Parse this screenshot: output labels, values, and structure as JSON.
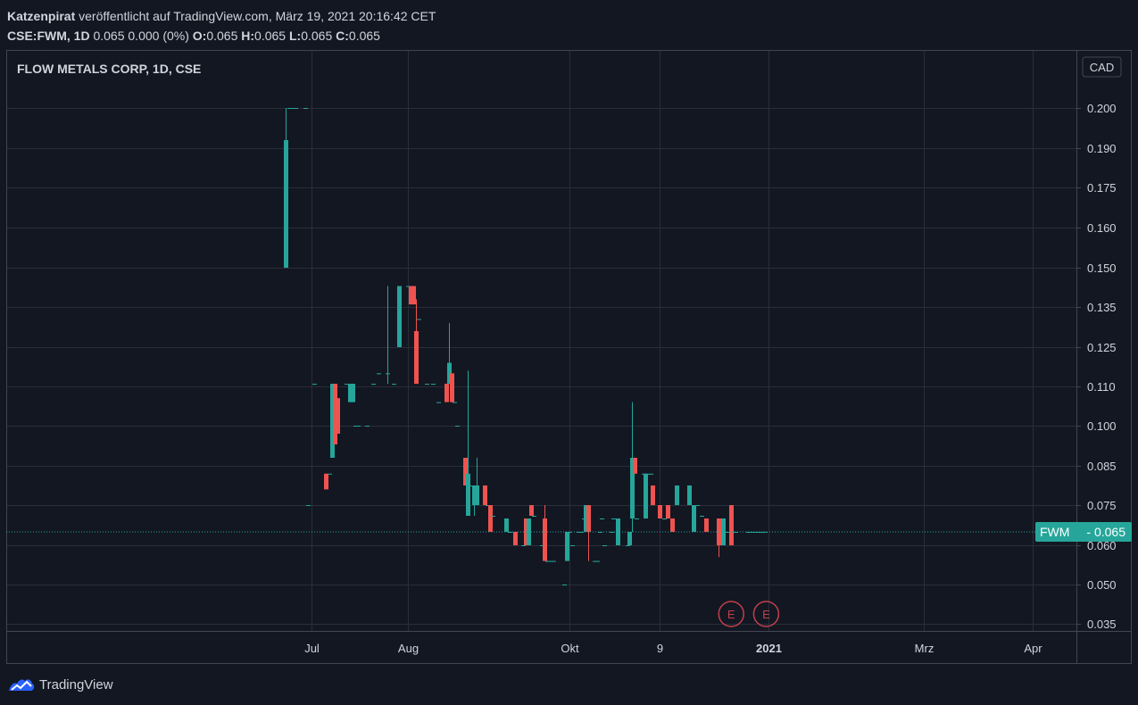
{
  "header": {
    "author": "Katzenpirat",
    "published_text": "veröffentlicht auf TradingView.com, März 19, 2021 20:16:42 CET",
    "symbol": "CSE:FWM, 1D",
    "last": "0.065",
    "change": "0.000 (0%)",
    "o_label": "O:",
    "o_value": "0.065",
    "h_label": "H:",
    "h_value": "0.065",
    "l_label": "L:",
    "l_value": "0.065",
    "c_label": "C:",
    "c_value": "0.065"
  },
  "footer": {
    "brand": "TradingView"
  },
  "colors": {
    "bg": "#131722",
    "grid": "#2a2e39",
    "up": "#26a69a",
    "down": "#ef5350",
    "text": "#d1d4dc",
    "event": "#c2404d"
  },
  "chart_data": {
    "type": "candlestick",
    "title": "FLOW METALS CORP, 1D, CSE",
    "currency": "CAD",
    "y_ticks": [
      "0.200",
      "0.190",
      "0.175",
      "0.160",
      "0.150",
      "0.135",
      "0.125",
      "0.110",
      "0.100",
      "0.085",
      "0.075",
      "0.060",
      "0.050",
      "0.035"
    ],
    "x_ticks": [
      {
        "label": "Jul",
        "date": "2020-07-01",
        "bold": false
      },
      {
        "label": "Aug",
        "date": "2020-08-03",
        "bold": false
      },
      {
        "label": "Okt",
        "date": "2020-10-01",
        "bold": false
      },
      {
        "label": "9",
        "date": "2020-11-09",
        "bold": false
      },
      {
        "label": "2021",
        "date": "2021-01-04",
        "bold": true
      },
      {
        "label": "Mrz",
        "date": "2021-03-01",
        "bold": false
      },
      {
        "label": "Apr",
        "date": "2021-04-01",
        "bold": false
      }
    ],
    "last_price": {
      "label": "FWM",
      "value": "0.065"
    },
    "events": [
      {
        "label": "E",
        "date": "2020-11-26"
      },
      {
        "label": "E",
        "date": "2020-12-15"
      }
    ],
    "candles": [
      {
        "date": "2020-06-23",
        "o": 0.15,
        "h": 0.2,
        "l": 0.15,
        "c": 0.192
      },
      {
        "date": "2020-06-24",
        "o": 0.2,
        "h": 0.2,
        "l": 0.2,
        "c": 0.2
      },
      {
        "date": "2020-06-25",
        "o": 0.2,
        "h": 0.2,
        "l": 0.2,
        "c": 0.2
      },
      {
        "date": "2020-06-26",
        "o": 0.2,
        "h": 0.2,
        "l": 0.2,
        "c": 0.2
      },
      {
        "date": "2020-06-29",
        "o": 0.2,
        "h": 0.2,
        "l": 0.2,
        "c": 0.2
      },
      {
        "date": "2020-06-30",
        "o": 0.075,
        "h": 0.075,
        "l": 0.075,
        "c": 0.075
      },
      {
        "date": "2020-07-02",
        "o": 0.111,
        "h": 0.111,
        "l": 0.111,
        "c": 0.111
      },
      {
        "date": "2020-07-06",
        "o": 0.083,
        "h": 0.083,
        "l": 0.079,
        "c": 0.079
      },
      {
        "date": "2020-07-07",
        "o": 0.083,
        "h": 0.083,
        "l": 0.083,
        "c": 0.083
      },
      {
        "date": "2020-07-08",
        "o": 0.088,
        "h": 0.111,
        "l": 0.088,
        "c": 0.111
      },
      {
        "date": "2020-07-09",
        "o": 0.111,
        "h": 0.111,
        "l": 0.093,
        "c": 0.093
      },
      {
        "date": "2020-07-10",
        "o": 0.107,
        "h": 0.107,
        "l": 0.097,
        "c": 0.097
      },
      {
        "date": "2020-07-13",
        "o": 0.111,
        "h": 0.111,
        "l": 0.111,
        "c": 0.111
      },
      {
        "date": "2020-07-14",
        "o": 0.106,
        "h": 0.111,
        "l": 0.106,
        "c": 0.111
      },
      {
        "date": "2020-07-15",
        "o": 0.106,
        "h": 0.111,
        "l": 0.106,
        "c": 0.111
      },
      {
        "date": "2020-07-16",
        "o": 0.1,
        "h": 0.1,
        "l": 0.1,
        "c": 0.1
      },
      {
        "date": "2020-07-17",
        "o": 0.1,
        "h": 0.1,
        "l": 0.1,
        "c": 0.1
      },
      {
        "date": "2020-07-20",
        "o": 0.1,
        "h": 0.1,
        "l": 0.1,
        "c": 0.1
      },
      {
        "date": "2020-07-22",
        "o": 0.111,
        "h": 0.111,
        "l": 0.111,
        "c": 0.111
      },
      {
        "date": "2020-07-24",
        "o": 0.115,
        "h": 0.115,
        "l": 0.115,
        "c": 0.115
      },
      {
        "date": "2020-07-27",
        "o": 0.115,
        "h": 0.143,
        "l": 0.111,
        "c": 0.115
      },
      {
        "date": "2020-07-29",
        "o": 0.111,
        "h": 0.111,
        "l": 0.111,
        "c": 0.111
      },
      {
        "date": "2020-07-31",
        "o": 0.125,
        "h": 0.143,
        "l": 0.125,
        "c": 0.143
      },
      {
        "date": "2020-08-03",
        "o": 0.143,
        "h": 0.143,
        "l": 0.143,
        "c": 0.143
      },
      {
        "date": "2020-08-04",
        "o": 0.143,
        "h": 0.143,
        "l": 0.136,
        "c": 0.136
      },
      {
        "date": "2020-08-05",
        "o": 0.143,
        "h": 0.143,
        "l": 0.136,
        "c": 0.136
      },
      {
        "date": "2020-08-06",
        "o": 0.129,
        "h": 0.138,
        "l": 0.111,
        "c": 0.111
      },
      {
        "date": "2020-08-07",
        "o": 0.132,
        "h": 0.132,
        "l": 0.132,
        "c": 0.132
      },
      {
        "date": "2020-08-10",
        "o": 0.111,
        "h": 0.111,
        "l": 0.111,
        "c": 0.111
      },
      {
        "date": "2020-08-12",
        "o": 0.111,
        "h": 0.111,
        "l": 0.111,
        "c": 0.111
      },
      {
        "date": "2020-08-14",
        "o": 0.106,
        "h": 0.106,
        "l": 0.106,
        "c": 0.106
      },
      {
        "date": "2020-08-17",
        "o": 0.111,
        "h": 0.111,
        "l": 0.106,
        "c": 0.106
      },
      {
        "date": "2020-08-18",
        "o": 0.111,
        "h": 0.131,
        "l": 0.111,
        "c": 0.119
      },
      {
        "date": "2020-08-19",
        "o": 0.115,
        "h": 0.115,
        "l": 0.106,
        "c": 0.106
      },
      {
        "date": "2020-08-20",
        "o": 0.106,
        "h": 0.106,
        "l": 0.106,
        "c": 0.106
      },
      {
        "date": "2020-08-21",
        "o": 0.1,
        "h": 0.1,
        "l": 0.1,
        "c": 0.1
      },
      {
        "date": "2020-08-24",
        "o": 0.088,
        "h": 0.088,
        "l": 0.08,
        "c": 0.08
      },
      {
        "date": "2020-08-25",
        "o": 0.071,
        "h": 0.116,
        "l": 0.071,
        "c": 0.083
      },
      {
        "date": "2020-08-26",
        "o": 0.08,
        "h": 0.08,
        "l": 0.08,
        "c": 0.08
      },
      {
        "date": "2020-08-27",
        "o": 0.075,
        "h": 0.08,
        "l": 0.071,
        "c": 0.08
      },
      {
        "date": "2020-08-28",
        "o": 0.075,
        "h": 0.088,
        "l": 0.075,
        "c": 0.08
      },
      {
        "date": "2020-08-31",
        "o": 0.08,
        "h": 0.08,
        "l": 0.075,
        "c": 0.075
      },
      {
        "date": "2020-09-01",
        "o": 0.075,
        "h": 0.075,
        "l": 0.075,
        "c": 0.075
      },
      {
        "date": "2020-09-02",
        "o": 0.075,
        "h": 0.075,
        "l": 0.065,
        "c": 0.065
      },
      {
        "date": "2020-09-03",
        "o": 0.071,
        "h": 0.071,
        "l": 0.071,
        "c": 0.071
      },
      {
        "date": "2020-09-08",
        "o": 0.065,
        "h": 0.07,
        "l": 0.065,
        "c": 0.07
      },
      {
        "date": "2020-09-09",
        "o": 0.065,
        "h": 0.065,
        "l": 0.065,
        "c": 0.065
      },
      {
        "date": "2020-09-11",
        "o": 0.065,
        "h": 0.065,
        "l": 0.06,
        "c": 0.06
      },
      {
        "date": "2020-09-14",
        "o": 0.06,
        "h": 0.06,
        "l": 0.06,
        "c": 0.06
      },
      {
        "date": "2020-09-15",
        "o": 0.07,
        "h": 0.07,
        "l": 0.06,
        "c": 0.06
      },
      {
        "date": "2020-09-16",
        "o": 0.06,
        "h": 0.07,
        "l": 0.06,
        "c": 0.07
      },
      {
        "date": "2020-09-17",
        "o": 0.075,
        "h": 0.075,
        "l": 0.071,
        "c": 0.071
      },
      {
        "date": "2020-09-18",
        "o": 0.071,
        "h": 0.071,
        "l": 0.071,
        "c": 0.071
      },
      {
        "date": "2020-09-21",
        "o": 0.06,
        "h": 0.06,
        "l": 0.06,
        "c": 0.06
      },
      {
        "date": "2020-09-22",
        "o": 0.07,
        "h": 0.075,
        "l": 0.056,
        "c": 0.056
      },
      {
        "date": "2020-09-23",
        "o": 0.056,
        "h": 0.056,
        "l": 0.056,
        "c": 0.056
      },
      {
        "date": "2020-09-24",
        "o": 0.056,
        "h": 0.056,
        "l": 0.056,
        "c": 0.056
      },
      {
        "date": "2020-09-25",
        "o": 0.056,
        "h": 0.056,
        "l": 0.056,
        "c": 0.056
      },
      {
        "date": "2020-09-29",
        "o": 0.05,
        "h": 0.05,
        "l": 0.05,
        "c": 0.05
      },
      {
        "date": "2020-09-30",
        "o": 0.056,
        "h": 0.065,
        "l": 0.056,
        "c": 0.065
      },
      {
        "date": "2020-10-01",
        "o": 0.065,
        "h": 0.065,
        "l": 0.065,
        "c": 0.065
      },
      {
        "date": "2020-10-02",
        "o": 0.06,
        "h": 0.06,
        "l": 0.06,
        "c": 0.06
      },
      {
        "date": "2020-10-05",
        "o": 0.065,
        "h": 0.065,
        "l": 0.065,
        "c": 0.065
      },
      {
        "date": "2020-10-06",
        "o": 0.065,
        "h": 0.065,
        "l": 0.065,
        "c": 0.065
      },
      {
        "date": "2020-10-07",
        "o": 0.07,
        "h": 0.07,
        "l": 0.07,
        "c": 0.07
      },
      {
        "date": "2020-10-08",
        "o": 0.065,
        "h": 0.075,
        "l": 0.065,
        "c": 0.075
      },
      {
        "date": "2020-10-09",
        "o": 0.075,
        "h": 0.075,
        "l": 0.056,
        "c": 0.065
      },
      {
        "date": "2020-10-12",
        "o": 0.056,
        "h": 0.056,
        "l": 0.056,
        "c": 0.056
      },
      {
        "date": "2020-10-13",
        "o": 0.056,
        "h": 0.056,
        "l": 0.056,
        "c": 0.056
      },
      {
        "date": "2020-10-14",
        "o": 0.065,
        "h": 0.065,
        "l": 0.065,
        "c": 0.065
      },
      {
        "date": "2020-10-15",
        "o": 0.07,
        "h": 0.07,
        "l": 0.07,
        "c": 0.07
      },
      {
        "date": "2020-10-16",
        "o": 0.06,
        "h": 0.06,
        "l": 0.06,
        "c": 0.06
      },
      {
        "date": "2020-10-19",
        "o": 0.065,
        "h": 0.065,
        "l": 0.065,
        "c": 0.065
      },
      {
        "date": "2020-10-20",
        "o": 0.07,
        "h": 0.07,
        "l": 0.07,
        "c": 0.07
      },
      {
        "date": "2020-10-21",
        "o": 0.07,
        "h": 0.07,
        "l": 0.07,
        "c": 0.07
      },
      {
        "date": "2020-10-22",
        "o": 0.06,
        "h": 0.07,
        "l": 0.06,
        "c": 0.07
      },
      {
        "date": "2020-10-26",
        "o": 0.06,
        "h": 0.06,
        "l": 0.06,
        "c": 0.06
      },
      {
        "date": "2020-10-27",
        "o": 0.06,
        "h": 0.065,
        "l": 0.06,
        "c": 0.065
      },
      {
        "date": "2020-10-28",
        "o": 0.07,
        "h": 0.106,
        "l": 0.065,
        "c": 0.088
      },
      {
        "date": "2020-10-29",
        "o": 0.088,
        "h": 0.088,
        "l": 0.083,
        "c": 0.083
      },
      {
        "date": "2020-10-30",
        "o": 0.07,
        "h": 0.07,
        "l": 0.07,
        "c": 0.07
      },
      {
        "date": "2020-11-02",
        "o": 0.083,
        "h": 0.083,
        "l": 0.083,
        "c": 0.083
      },
      {
        "date": "2020-11-03",
        "o": 0.07,
        "h": 0.083,
        "l": 0.07,
        "c": 0.083
      },
      {
        "date": "2020-11-04",
        "o": 0.083,
        "h": 0.083,
        "l": 0.083,
        "c": 0.083
      },
      {
        "date": "2020-11-05",
        "o": 0.083,
        "h": 0.083,
        "l": 0.083,
        "c": 0.083
      },
      {
        "date": "2020-11-06",
        "o": 0.08,
        "h": 0.08,
        "l": 0.075,
        "c": 0.075
      },
      {
        "date": "2020-11-09",
        "o": 0.075,
        "h": 0.075,
        "l": 0.07,
        "c": 0.07
      },
      {
        "date": "2020-11-10",
        "o": 0.07,
        "h": 0.07,
        "l": 0.07,
        "c": 0.07
      },
      {
        "date": "2020-11-11",
        "o": 0.075,
        "h": 0.075,
        "l": 0.07,
        "c": 0.07
      },
      {
        "date": "2020-11-12",
        "o": 0.07,
        "h": 0.07,
        "l": 0.065,
        "c": 0.065
      },
      {
        "date": "2020-11-13",
        "o": 0.075,
        "h": 0.08,
        "l": 0.075,
        "c": 0.08
      },
      {
        "date": "2020-11-16",
        "o": 0.075,
        "h": 0.08,
        "l": 0.075,
        "c": 0.08
      },
      {
        "date": "2020-11-17",
        "o": 0.065,
        "h": 0.075,
        "l": 0.065,
        "c": 0.075
      },
      {
        "date": "2020-11-18",
        "o": 0.075,
        "h": 0.075,
        "l": 0.075,
        "c": 0.075
      },
      {
        "date": "2020-11-19",
        "o": 0.071,
        "h": 0.071,
        "l": 0.071,
        "c": 0.071
      },
      {
        "date": "2020-11-20",
        "o": 0.07,
        "h": 0.07,
        "l": 0.065,
        "c": 0.065
      },
      {
        "date": "2020-11-23",
        "o": 0.07,
        "h": 0.07,
        "l": 0.057,
        "c": 0.06
      },
      {
        "date": "2020-11-24",
        "o": 0.06,
        "h": 0.07,
        "l": 0.06,
        "c": 0.07
      },
      {
        "date": "2020-11-25",
        "o": 0.065,
        "h": 0.065,
        "l": 0.065,
        "c": 0.065
      },
      {
        "date": "2020-11-26",
        "o": 0.075,
        "h": 0.075,
        "l": 0.06,
        "c": 0.06
      },
      {
        "date": "2020-11-27",
        "o": 0.065,
        "h": 0.065,
        "l": 0.065,
        "c": 0.065
      },
      {
        "date": "2020-11-30",
        "o": 0.065,
        "h": 0.065,
        "l": 0.065,
        "c": 0.065
      },
      {
        "date": "2020-12-01",
        "o": 0.065,
        "h": 0.065,
        "l": 0.065,
        "c": 0.065
      },
      {
        "date": "2020-12-02",
        "o": 0.065,
        "h": 0.065,
        "l": 0.065,
        "c": 0.065
      },
      {
        "date": "2020-12-03",
        "o": 0.065,
        "h": 0.065,
        "l": 0.065,
        "c": 0.065
      },
      {
        "date": "2020-12-04",
        "o": 0.065,
        "h": 0.065,
        "l": 0.065,
        "c": 0.065
      }
    ]
  }
}
